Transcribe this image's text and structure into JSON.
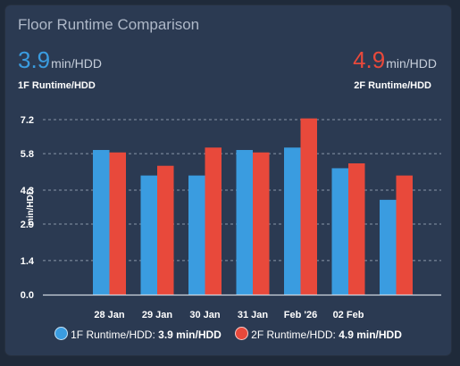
{
  "card": {
    "title": "Floor Runtime Comparison"
  },
  "stats": {
    "left": {
      "value": "3.9",
      "unit": "min/HDD",
      "label": "1F Runtime/HDD"
    },
    "right": {
      "value": "4.9",
      "unit": "min/HDD",
      "label": "2F Runtime/HDD"
    }
  },
  "colors": {
    "series1": "#3a9ce0",
    "series2": "#e8493b",
    "grid": "#8a96a8",
    "text": "#ffffff"
  },
  "chart_data": {
    "type": "bar",
    "title": "",
    "xlabel": "",
    "ylabel": "min/HDD",
    "categories": [
      "28 Jan",
      "29 Jan",
      "30 Jan",
      "31 Jan",
      "Feb '26",
      "02 Feb",
      ""
    ],
    "yticks": [
      "0.0",
      "1.4",
      "2.9",
      "4.3",
      "5.8",
      "7.2"
    ],
    "ylim": [
      0,
      7.2
    ],
    "grid": true,
    "legend_position": "bottom",
    "series": [
      {
        "name": "1F Runtime/HDD",
        "values": [
          5.95,
          4.9,
          4.9,
          5.95,
          6.05,
          5.2,
          3.9
        ]
      },
      {
        "name": "2F Runtime/HDD",
        "values": [
          5.85,
          5.3,
          6.05,
          5.85,
          7.25,
          5.4,
          4.9
        ]
      }
    ]
  },
  "legend": [
    {
      "label": "1F Runtime/HDD:",
      "value": "3.9 min/HDD"
    },
    {
      "label": "2F Runtime/HDD:",
      "value": "4.9 min/HDD"
    }
  ]
}
